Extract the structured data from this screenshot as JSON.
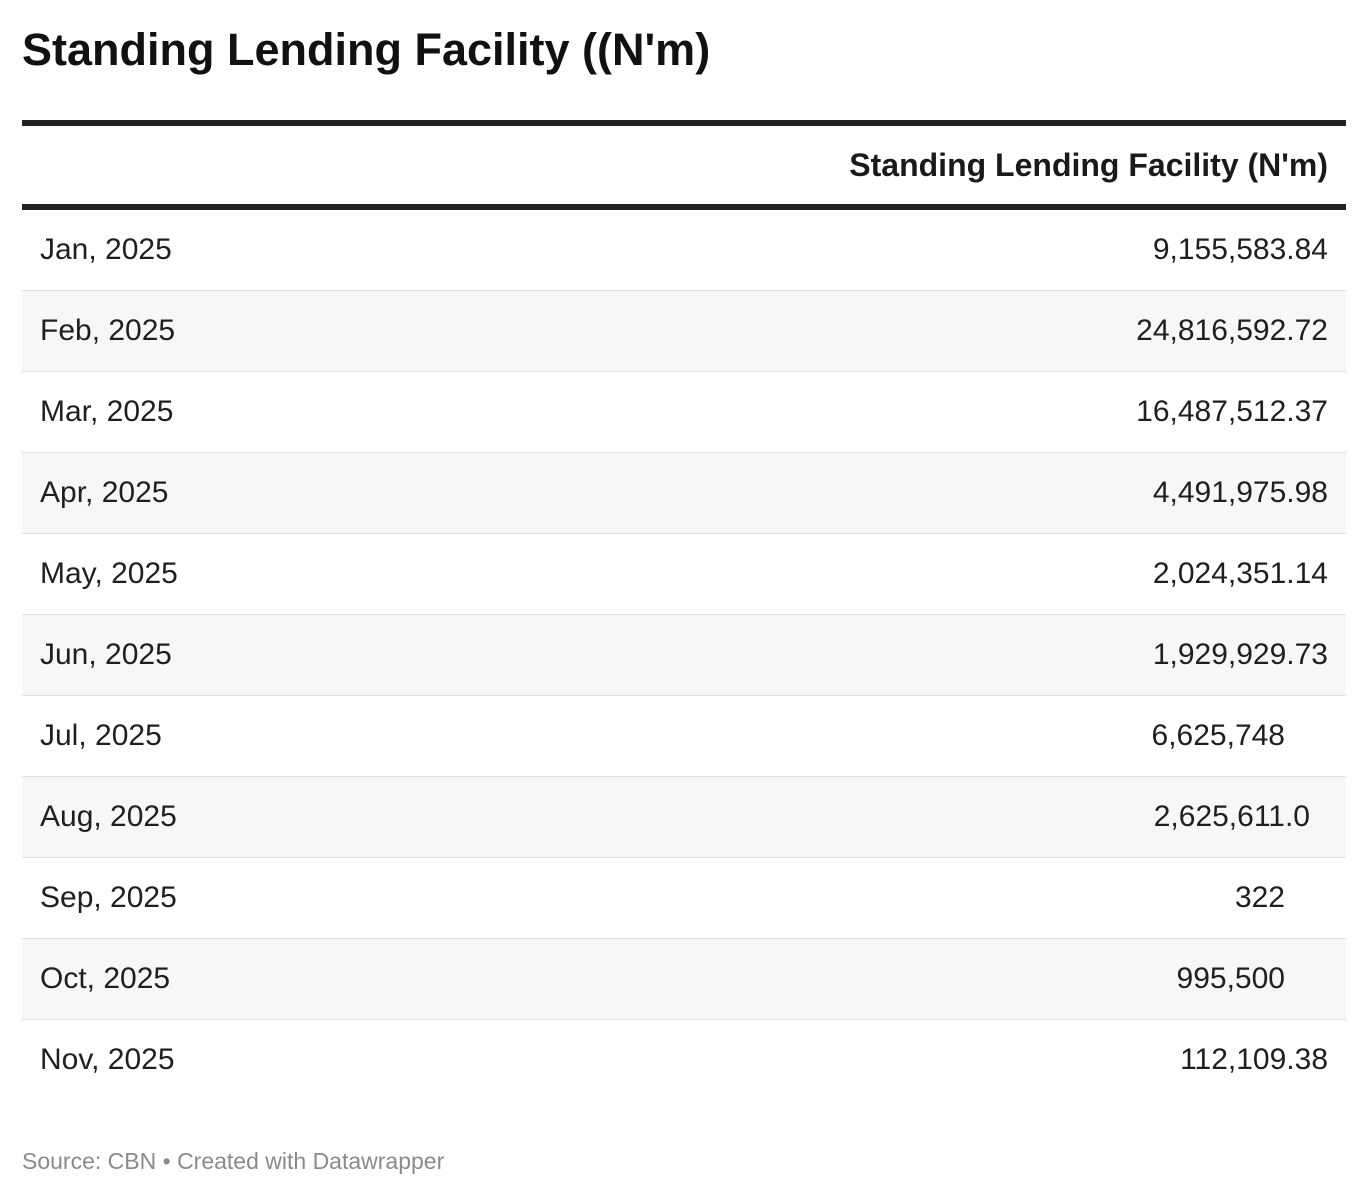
{
  "chart_data": {
    "type": "table",
    "title": "Standing Lending Facility ((N'm)",
    "columns": [
      "",
      "Standing Lending Facility (N'm)"
    ],
    "rows": [
      {
        "label": "Jan, 2025",
        "value": "9,155,583.84",
        "align": "dec2"
      },
      {
        "label": "Feb, 2025",
        "value": "24,816,592.72",
        "align": "dec2"
      },
      {
        "label": "Mar, 2025",
        "value": "16,487,512.37",
        "align": "dec2"
      },
      {
        "label": "Apr, 2025",
        "value": "4,491,975.98",
        "align": "dec2"
      },
      {
        "label": "May, 2025",
        "value": "2,024,351.14",
        "align": "dec2"
      },
      {
        "label": "Jun, 2025",
        "value": "1,929,929.73",
        "align": "dec2"
      },
      {
        "label": "Jul, 2025",
        "value": "6,625,748",
        "align": "int"
      },
      {
        "label": "Aug, 2025",
        "value": "2,625,611.0",
        "align": "dec1"
      },
      {
        "label": "Sep, 2025",
        "value": "322",
        "align": "int"
      },
      {
        "label": "Oct, 2025",
        "value": "995,500",
        "align": "int"
      },
      {
        "label": "Nov, 2025",
        "value": "112,109.38",
        "align": "dec2"
      }
    ],
    "source": "Source: CBN",
    "credit": "Created with Datawrapper",
    "separator": " • "
  }
}
